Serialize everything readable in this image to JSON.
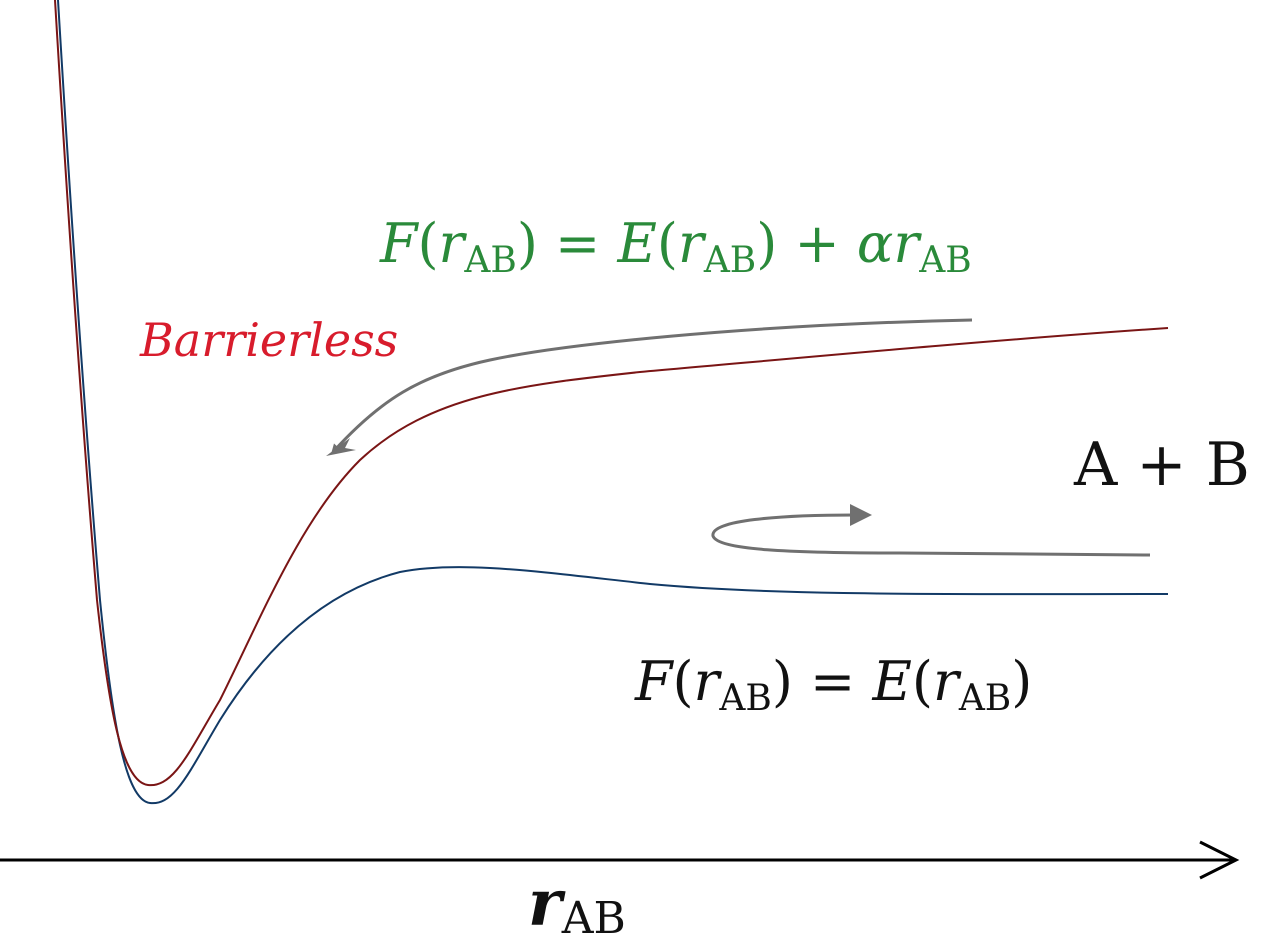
{
  "labels": {
    "barrierless": "Barrierless",
    "reactants": "A + B",
    "x_axis_symbol": "r",
    "x_axis_subscript": "AB"
  },
  "equations": {
    "modified": {
      "lhs_func": "F",
      "lhs_var": "r",
      "sub": "AB",
      "rhs_func": "E",
      "rhs_var": "r",
      "plus": "+",
      "alpha": "α",
      "alpha_var": "r"
    },
    "original": {
      "lhs_func": "F",
      "lhs_var": "r",
      "sub": "AB",
      "rhs_func": "E",
      "rhs_var": "r"
    }
  },
  "colors": {
    "barrierless_curve": "#7a1515",
    "original_curve": "#123a66",
    "modified_equation": "#2a8a3a",
    "barrierless_label": "#d81c2c",
    "arrows": "#707070",
    "axis": "#000000",
    "text": "#111111"
  }
}
